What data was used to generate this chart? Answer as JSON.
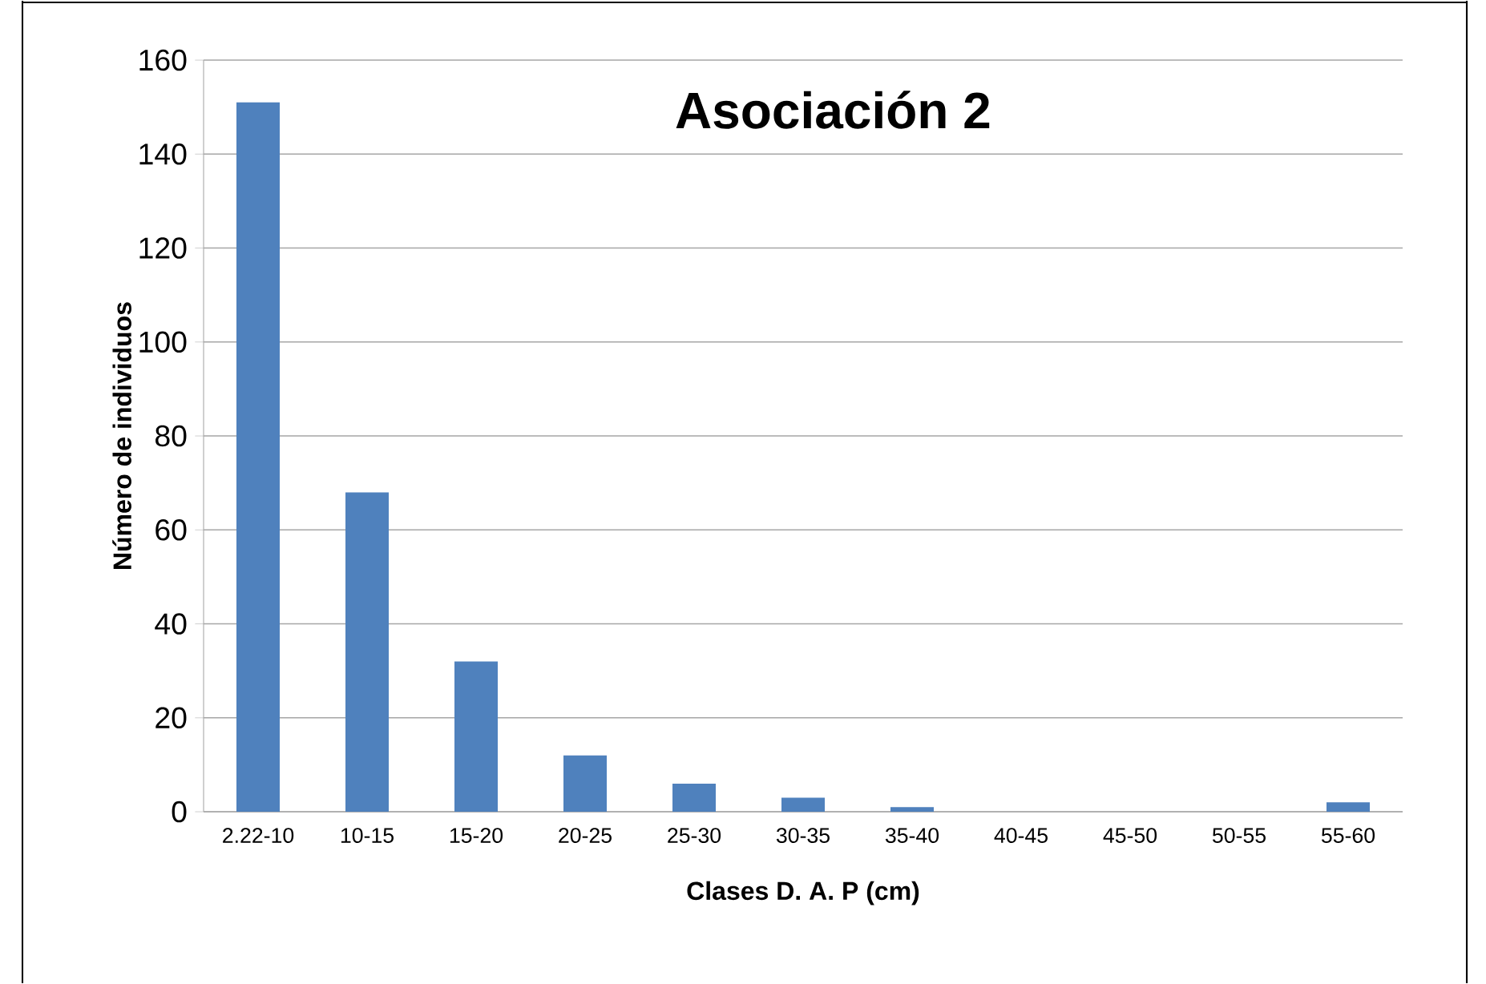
{
  "chart_data": {
    "type": "bar",
    "title": "Asociación 2",
    "xlabel": "Clases D. A. P (cm)",
    "ylabel": "Número de individuos",
    "categories": [
      "2.22-10",
      "10-15",
      "15-20",
      "20-25",
      "25-30",
      "30-35",
      "35-40",
      "40-45",
      "45-50",
      "50-55",
      "55-60"
    ],
    "values": [
      151,
      68,
      32,
      12,
      6,
      3,
      1,
      0,
      0,
      0,
      2
    ],
    "color": "#4f81bd",
    "ylim": [
      0,
      160
    ],
    "yticks": [
      0,
      20,
      40,
      60,
      80,
      100,
      120,
      140,
      160
    ],
    "grid": "y"
  }
}
